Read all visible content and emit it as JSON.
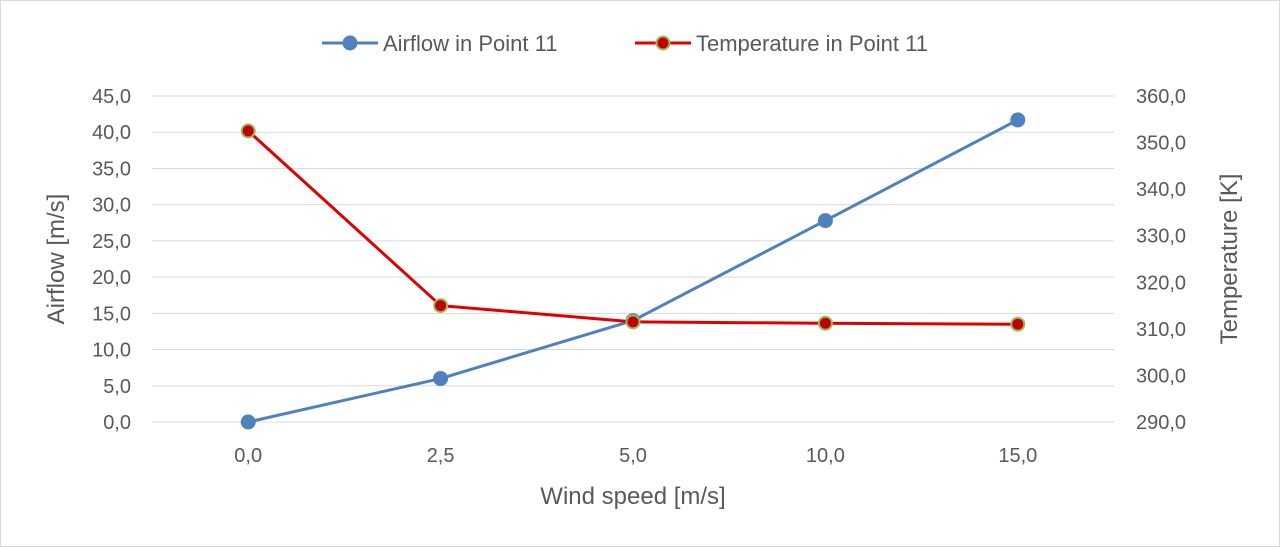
{
  "chart_data": {
    "type": "line",
    "categories": [
      "0,0",
      "2,5",
      "5,0",
      "10,0",
      "15,0"
    ],
    "xlabel": "Wind speed [m/s]",
    "ylabel": "Airflow [m/s]",
    "y2label": "Temperature [K]",
    "ylim": [
      0,
      45
    ],
    "y_ticks": [
      "0,0",
      "5,0",
      "10,0",
      "15,0",
      "20,0",
      "25,0",
      "30,0",
      "35,0",
      "40,0",
      "45,0"
    ],
    "y2lim": [
      290,
      360
    ],
    "y2_ticks": [
      "290,0",
      "300,0",
      "310,0",
      "320,0",
      "330,0",
      "340,0",
      "350,0",
      "360,0"
    ],
    "grid": true,
    "legend_position": "top",
    "series": [
      {
        "name": "Airflow in Point 11",
        "axis": "left",
        "values": [
          0.0,
          6.0,
          14.0,
          27.8,
          41.7
        ],
        "color": "#4f81bd",
        "marker_fill": "#4f81bd",
        "marker_edge": "#4f81bd"
      },
      {
        "name": "Temperature in Point 11",
        "axis": "right",
        "values": [
          352.5,
          315.0,
          311.5,
          311.2,
          311.0
        ],
        "color": "#e00000",
        "marker_fill": "#c00000",
        "marker_edge": "#9bbb59"
      }
    ]
  }
}
